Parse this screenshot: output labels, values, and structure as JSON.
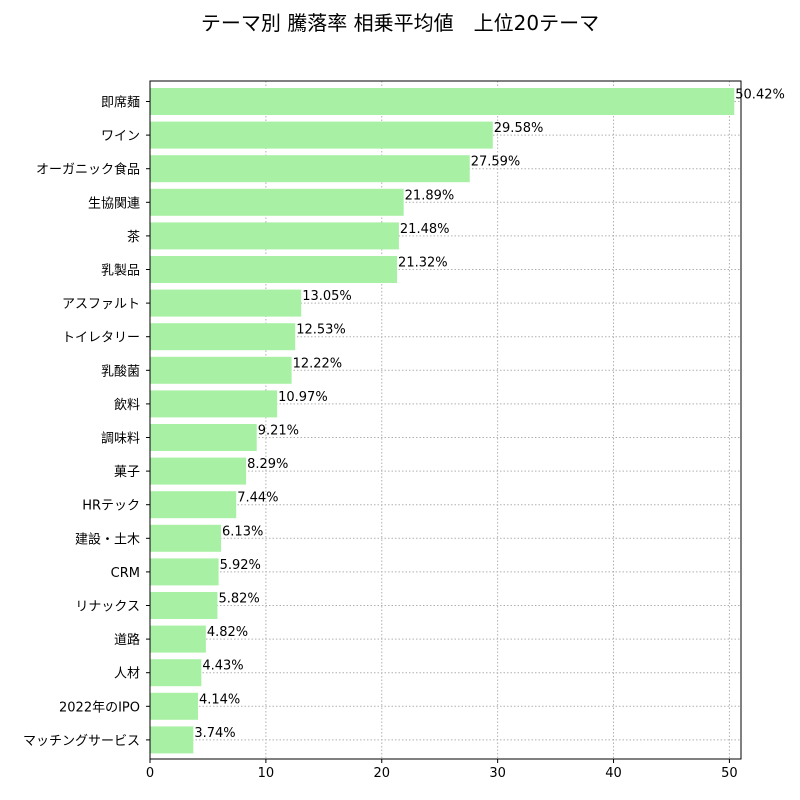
{
  "chart_data": {
    "type": "bar",
    "orientation": "horizontal",
    "title": "テーマ別 騰落率 相乗平均値　上位20テーマ",
    "categories": [
      "即席麺",
      "ワイン",
      "オーガニック食品",
      "生協関連",
      "茶",
      "乳製品",
      "アスファルト",
      "トイレタリー",
      "乳酸菌",
      "飲料",
      "調味料",
      "菓子",
      "HRテック",
      "建設・土木",
      "CRM",
      "リナックス",
      "道路",
      "人材",
      "2022年のIPO",
      "マッチングサービス"
    ],
    "values": [
      50.42,
      29.58,
      27.59,
      21.89,
      21.48,
      21.32,
      13.05,
      12.53,
      12.22,
      10.97,
      9.21,
      8.29,
      7.44,
      6.13,
      5.92,
      5.82,
      4.82,
      4.43,
      4.14,
      3.74
    ],
    "value_labels": [
      "50.42%",
      "29.58%",
      "27.59%",
      "21.89%",
      "21.48%",
      "21.32%",
      "13.05%",
      "12.53%",
      "12.22%",
      "10.97%",
      "9.21%",
      "8.29%",
      "7.44%",
      "6.13%",
      "5.92%",
      "5.82%",
      "4.82%",
      "4.43%",
      "4.14%",
      "3.74%"
    ],
    "xticks": [
      "0",
      "10",
      "20",
      "30",
      "40",
      "50"
    ],
    "xlim": [
      0,
      51
    ],
    "grid": true,
    "bar_color": "#a8f0a4"
  }
}
